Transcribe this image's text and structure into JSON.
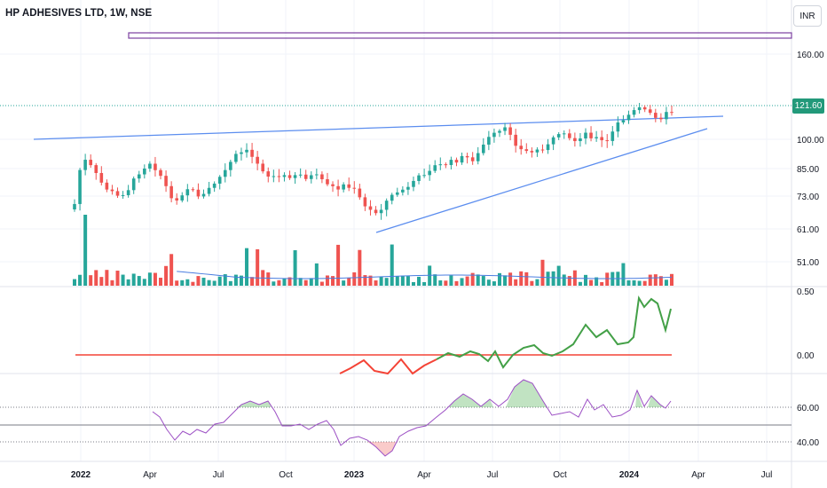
{
  "header": {
    "symbol_title": "HP ADHESIVES LTD, 1W, NSE",
    "currency_button": "INR"
  },
  "last_price": "121.60",
  "price_axis": {
    "labels": [
      "160.00",
      "100.00",
      "85.00",
      "73.00",
      "61.00",
      "51.00"
    ]
  },
  "momentum_axis": {
    "labels": [
      "0.50",
      "0.00"
    ]
  },
  "rsi_axis": {
    "labels": [
      "60.00",
      "40.00"
    ]
  },
  "time_axis": {
    "labels": [
      "2022",
      "Apr",
      "Jul",
      "Oct",
      "2023",
      "Apr",
      "Jul",
      "Oct",
      "2024",
      "Apr",
      "Jul"
    ]
  },
  "colors": {
    "up": "#26a69a",
    "down": "#ef5350",
    "trendline": "#5b8def",
    "rect": "#7b3fa0",
    "rsi": "#9c4fc4",
    "momentum_up": "#43a047",
    "momentum_down": "#f44336",
    "volume_ma": "#4a7de0"
  }
}
